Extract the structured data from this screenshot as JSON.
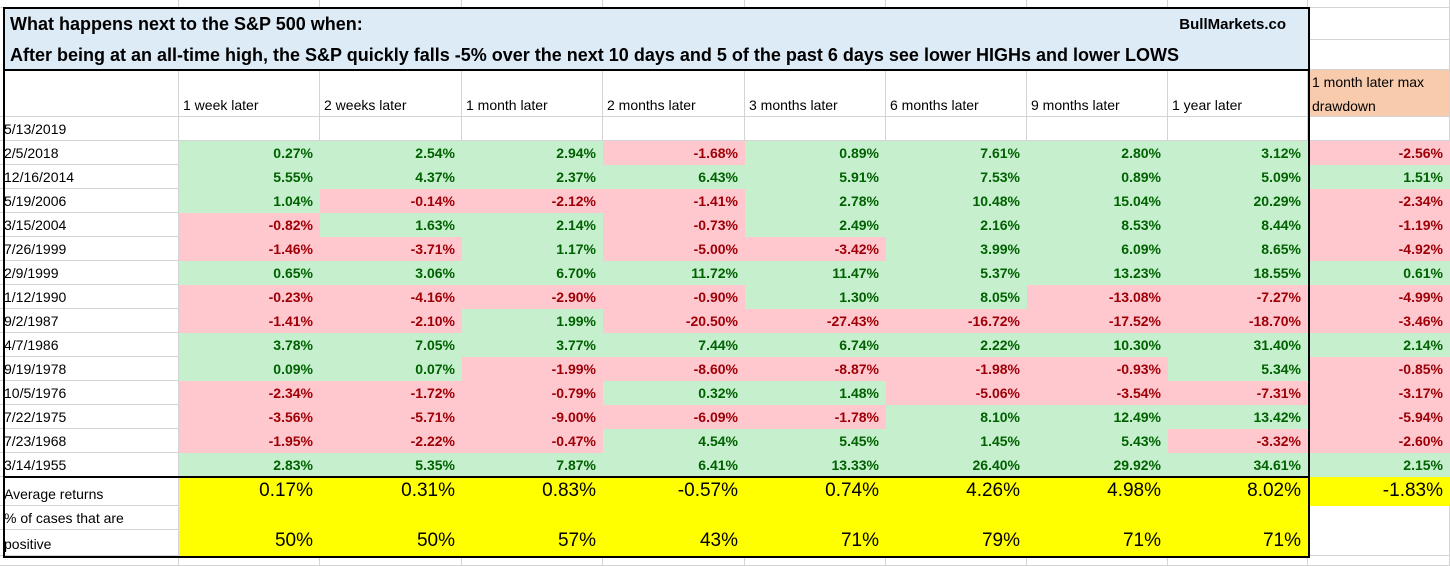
{
  "title": {
    "line1": "What happens next to the S&P 500 when:",
    "line2": "After being at an all-time high, the S&P quickly falls -5% over the next 10 days and 5 of the past 6 days see lower HIGHs and lower LOWS",
    "brand": "BullMarkets.co"
  },
  "colors": {
    "title_bg": "#DDEBF7",
    "positive_bg": "#C6EFCE",
    "positive_text": "#006100",
    "negative_bg": "#FFC7CE",
    "negative_text": "#9C0006",
    "summary_bg": "#FFFF00",
    "drawdown_header_bg": "#F8CBAD"
  },
  "headers": [
    "1 week later",
    "2 weeks later",
    "1 month later",
    "2 months later",
    "3 months later",
    "6 months later",
    "9 months later",
    "1 year later",
    "1 month later max drawdown"
  ],
  "current_date": "5/13/2019",
  "rows": [
    {
      "date": "2/5/2018",
      "values": [
        "0.27%",
        "2.54%",
        "2.94%",
        "-1.68%",
        "0.89%",
        "7.61%",
        "2.80%",
        "3.12%",
        "-2.56%"
      ]
    },
    {
      "date": "12/16/2014",
      "values": [
        "5.55%",
        "4.37%",
        "2.37%",
        "6.43%",
        "5.91%",
        "7.53%",
        "0.89%",
        "5.09%",
        "1.51%"
      ]
    },
    {
      "date": "5/19/2006",
      "values": [
        "1.04%",
        "-0.14%",
        "-2.12%",
        "-1.41%",
        "2.78%",
        "10.48%",
        "15.04%",
        "20.29%",
        "-2.34%"
      ]
    },
    {
      "date": "3/15/2004",
      "values": [
        "-0.82%",
        "1.63%",
        "2.14%",
        "-0.73%",
        "2.49%",
        "2.16%",
        "8.53%",
        "8.44%",
        "-1.19%"
      ]
    },
    {
      "date": "7/26/1999",
      "values": [
        "-1.46%",
        "-3.71%",
        "1.17%",
        "-5.00%",
        "-3.42%",
        "3.99%",
        "6.09%",
        "8.65%",
        "-4.92%"
      ]
    },
    {
      "date": "2/9/1999",
      "values": [
        "0.65%",
        "3.06%",
        "6.70%",
        "11.72%",
        "11.47%",
        "5.37%",
        "13.23%",
        "18.55%",
        "0.61%"
      ]
    },
    {
      "date": "1/12/1990",
      "values": [
        "-0.23%",
        "-4.16%",
        "-2.90%",
        "-0.90%",
        "1.30%",
        "8.05%",
        "-13.08%",
        "-7.27%",
        "-4.99%"
      ]
    },
    {
      "date": "9/2/1987",
      "values": [
        "-1.41%",
        "-2.10%",
        "1.99%",
        "-20.50%",
        "-27.43%",
        "-16.72%",
        "-17.52%",
        "-18.70%",
        "-3.46%"
      ]
    },
    {
      "date": "4/7/1986",
      "values": [
        "3.78%",
        "7.05%",
        "3.77%",
        "7.44%",
        "6.74%",
        "2.22%",
        "10.30%",
        "31.40%",
        "2.14%"
      ]
    },
    {
      "date": "9/19/1978",
      "values": [
        "0.09%",
        "0.07%",
        "-1.99%",
        "-8.60%",
        "-8.87%",
        "-1.98%",
        "-0.93%",
        "5.34%",
        "-0.85%"
      ]
    },
    {
      "date": "10/5/1976",
      "values": [
        "-2.34%",
        "-1.72%",
        "-0.79%",
        "0.32%",
        "1.48%",
        "-5.06%",
        "-3.54%",
        "-7.31%",
        "-3.17%"
      ]
    },
    {
      "date": "7/22/1975",
      "values": [
        "-3.56%",
        "-5.71%",
        "-9.00%",
        "-6.09%",
        "-1.78%",
        "8.10%",
        "12.49%",
        "13.42%",
        "-5.94%"
      ]
    },
    {
      "date": "7/23/1968",
      "values": [
        "-1.95%",
        "-2.22%",
        "-0.47%",
        "4.54%",
        "5.45%",
        "1.45%",
        "5.43%",
        "-3.32%",
        "-2.60%"
      ]
    },
    {
      "date": "3/14/1955",
      "values": [
        "2.83%",
        "5.35%",
        "7.87%",
        "6.41%",
        "13.33%",
        "26.40%",
        "29.92%",
        "34.61%",
        "2.15%"
      ]
    }
  ],
  "summary": {
    "average_label": "Average returns",
    "average_values": [
      "0.17%",
      "0.31%",
      "0.83%",
      "-0.57%",
      "0.74%",
      "4.26%",
      "4.98%",
      "8.02%",
      "-1.83%"
    ],
    "positive_label_line1": "% of cases that are",
    "positive_label_line2": "positive",
    "positive_values": [
      "50%",
      "50%",
      "57%",
      "43%",
      "71%",
      "79%",
      "71%",
      "71%"
    ]
  }
}
